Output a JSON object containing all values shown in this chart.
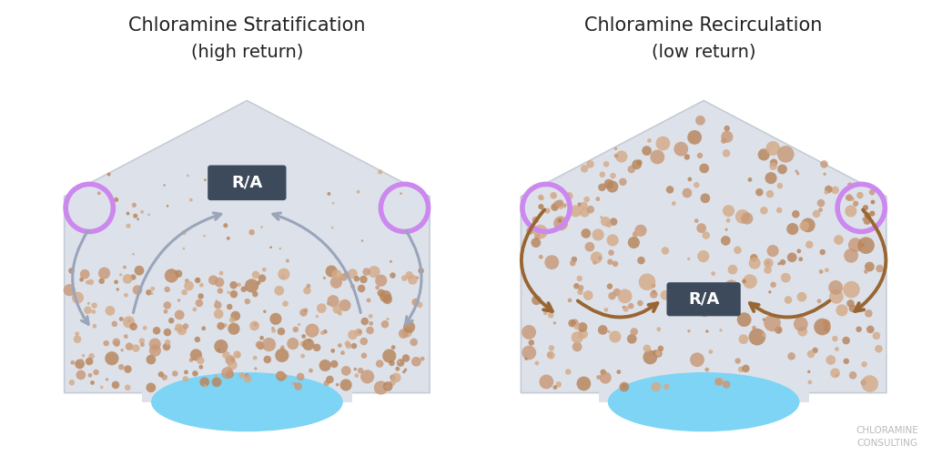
{
  "background_color": "#ffffff",
  "title1": "Chloramine Stratification",
  "subtitle1": "(high return)",
  "title2": "Chloramine Recirculation",
  "subtitle2": "(low return)",
  "title_fontsize": 15,
  "subtitle_fontsize": 14,
  "building_fill": "#dde2ea",
  "building_stroke": "#c5ccd5",
  "pool_fill": "#7dd4f5",
  "circle_color": "#cc88ee",
  "ra_box_color": "#3d4a5c",
  "ra_text_color": "#ffffff",
  "arrow1_color": "#9aa5bb",
  "arrow2_color": "#996633",
  "dot_color_dark": "#b8845a",
  "dot_color_mid": "#c89878",
  "dot_color_light": "#d4aa88",
  "watermark_color": "#bbbbbb",
  "watermark_fontsize": 7.5
}
